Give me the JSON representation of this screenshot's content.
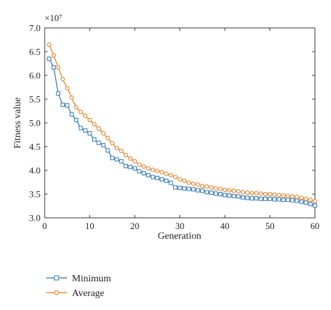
{
  "chart_data": {
    "type": "line",
    "title": "",
    "xlabel": "Generation",
    "ylabel": "Fitness value",
    "y_multiplier_label": "×10⁷",
    "xlim": [
      0,
      60
    ],
    "ylim": [
      3.0,
      7.0
    ],
    "x_ticks": [
      0,
      10,
      20,
      30,
      40,
      50,
      60
    ],
    "y_ticks": [
      3.0,
      3.5,
      4.0,
      4.5,
      5.0,
      5.5,
      6.0,
      6.5,
      7.0
    ],
    "x_tick_labels": [
      "0",
      "10",
      "20",
      "30",
      "40",
      "50",
      "60"
    ],
    "y_tick_labels": [
      "3.0",
      "3.5",
      "4.0",
      "4.5",
      "5.0",
      "5.5",
      "6.0",
      "6.5",
      "7.0"
    ],
    "grid": false,
    "legend_position": "bottom-left",
    "x": [
      1,
      2,
      3,
      4,
      5,
      6,
      7,
      8,
      9,
      10,
      11,
      12,
      13,
      14,
      15,
      16,
      17,
      18,
      19,
      20,
      21,
      22,
      23,
      24,
      25,
      26,
      27,
      28,
      29,
      30,
      31,
      32,
      33,
      34,
      35,
      36,
      37,
      38,
      39,
      40,
      41,
      42,
      43,
      44,
      45,
      46,
      47,
      48,
      49,
      50,
      51,
      52,
      53,
      54,
      55,
      56,
      57,
      58,
      59,
      60
    ],
    "series": [
      {
        "name": "Minimum",
        "color": "#2e75b6",
        "marker": "square",
        "values": [
          6.35,
          6.17,
          5.62,
          5.38,
          5.37,
          5.18,
          5.06,
          4.89,
          4.84,
          4.78,
          4.65,
          4.58,
          4.53,
          4.42,
          4.26,
          4.23,
          4.19,
          4.09,
          4.07,
          4.04,
          3.98,
          3.94,
          3.9,
          3.86,
          3.84,
          3.81,
          3.78,
          3.74,
          3.64,
          3.63,
          3.62,
          3.61,
          3.6,
          3.58,
          3.57,
          3.54,
          3.53,
          3.51,
          3.5,
          3.48,
          3.47,
          3.46,
          3.45,
          3.43,
          3.42,
          3.41,
          3.41,
          3.4,
          3.4,
          3.4,
          3.39,
          3.39,
          3.38,
          3.38,
          3.37,
          3.36,
          3.34,
          3.32,
          3.29,
          3.26
        ]
      },
      {
        "name": "Average",
        "color": "#e07b1f",
        "marker": "circle",
        "values": [
          6.65,
          6.42,
          6.17,
          5.92,
          5.73,
          5.53,
          5.33,
          5.23,
          5.15,
          5.06,
          4.97,
          4.88,
          4.78,
          4.68,
          4.57,
          4.47,
          4.41,
          4.32,
          4.25,
          4.19,
          4.12,
          4.08,
          4.04,
          4.01,
          3.99,
          3.96,
          3.93,
          3.9,
          3.86,
          3.81,
          3.78,
          3.74,
          3.72,
          3.7,
          3.67,
          3.66,
          3.64,
          3.62,
          3.61,
          3.59,
          3.58,
          3.57,
          3.56,
          3.54,
          3.53,
          3.52,
          3.52,
          3.51,
          3.5,
          3.5,
          3.49,
          3.48,
          3.47,
          3.46,
          3.45,
          3.44,
          3.42,
          3.4,
          3.38,
          3.35
        ]
      }
    ]
  }
}
